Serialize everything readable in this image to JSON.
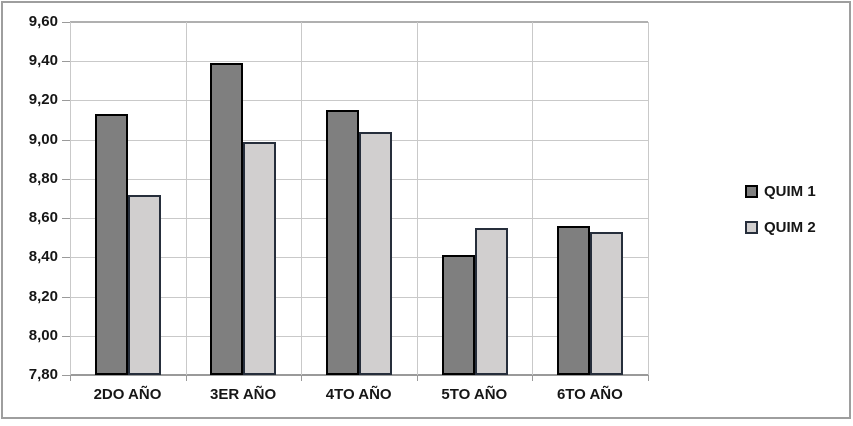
{
  "chart_data": {
    "type": "bar",
    "title": "",
    "categories": [
      "2DO AÑO",
      "3ER AÑO",
      "4TO AÑO",
      "5TO AÑO",
      "6TO AÑO"
    ],
    "series": [
      {
        "name": "QUIM 1",
        "fill": "#7f7f7f",
        "border": "#000000",
        "values": [
          9.13,
          9.39,
          9.15,
          8.41,
          8.56
        ]
      },
      {
        "name": "QUIM 2",
        "fill": "#d1cfcf",
        "border": "#262e3b",
        "values": [
          8.72,
          8.99,
          9.04,
          8.55,
          8.53
        ]
      }
    ],
    "y_axis": {
      "min": 7.8,
      "max": 9.6,
      "step": 0.2,
      "tick_labels": [
        "9,60",
        "9,40",
        "9,20",
        "9,00",
        "8,80",
        "8,60",
        "8,40",
        "8,20",
        "8,00",
        "7,80"
      ]
    },
    "legend_position": "right",
    "grid": true,
    "colors": {
      "grid": "#c9c9c9",
      "grid_top": "#b0b0b0",
      "axis": "#9a9a9a",
      "frame": "#9e9e9e",
      "text": "#161616"
    }
  }
}
